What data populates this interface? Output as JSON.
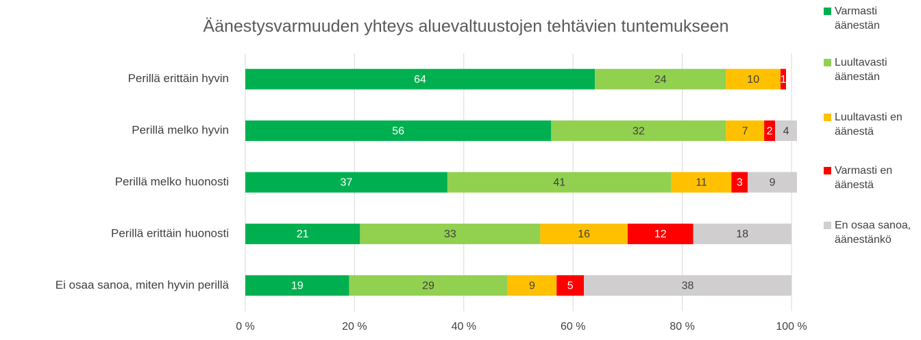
{
  "chart_data": {
    "type": "stacked_barh",
    "title": "Äänestysvarmuuden yhteys aluevaltuustojen tehtävien tuntemukseen",
    "categories": [
      "Perillä erittäin hyvin",
      "Perillä melko hyvin",
      "Perillä melko huonosti",
      "Perillä erittäin huonosti",
      "Ei osaa sanoa, miten hyvin perillä"
    ],
    "series": [
      {
        "name": "Varmasti äänestän",
        "color": "#00b050",
        "label_color": "#ffffff",
        "values": [
          64,
          56,
          37,
          21,
          19
        ]
      },
      {
        "name": "Luultavasti äänestän",
        "color": "#92d050",
        "label_color": "#404040",
        "values": [
          24,
          32,
          41,
          33,
          29
        ]
      },
      {
        "name": "Luultavasti en äänestä",
        "color": "#ffc000",
        "label_color": "#404040",
        "values": [
          10,
          7,
          11,
          16,
          9
        ]
      },
      {
        "name": "Varmasti en äänestä",
        "color": "#ff0000",
        "label_color": "#ffffff",
        "values": [
          1,
          2,
          3,
          12,
          5
        ]
      },
      {
        "name": "En osaa sanoa, äänestänkö",
        "color": "#d0cece",
        "label_color": "#404040",
        "values": [
          null,
          4,
          9,
          18,
          38
        ]
      }
    ],
    "xlim": [
      0,
      100
    ],
    "xticks": [
      {
        "value": 0,
        "label": "0 %"
      },
      {
        "value": 20,
        "label": "20 %"
      },
      {
        "value": 40,
        "label": "40 %"
      },
      {
        "value": 60,
        "label": "60 %"
      },
      {
        "value": 80,
        "label": "80 %"
      },
      {
        "value": 100,
        "label": "100 %"
      }
    ],
    "grid": true,
    "legend": "right"
  }
}
